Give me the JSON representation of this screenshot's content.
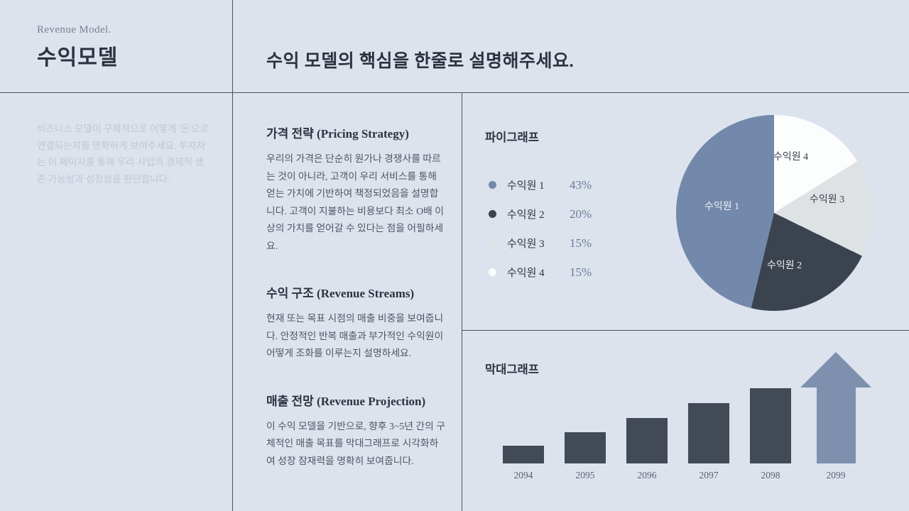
{
  "theme": {
    "background": "#dce3ed",
    "divider": "#49525f",
    "heading_text": "#2c3440",
    "body_text": "#4e5764",
    "muted_text": "#bec7d3",
    "accent_blue": "#7389ab",
    "dark_slate": "#3b434e"
  },
  "sidebar": {
    "eyebrow": "Revenue Model.",
    "title": "수익모델",
    "description": "비즈니스 모델이 구체적으로 어떻게 '돈'으로 연결되는지를 명확하게 보여주세요. 투자자는 이 페이지를 통해 우리 사업의 경제적 생존 가능성과 성장성을 판단합니다."
  },
  "header": {
    "title": "수익 모델의 핵심을 한줄로 설명해주세요."
  },
  "sections": [
    {
      "heading": "가격 전략 (Pricing Strategy)",
      "body": "우리의 가격은 단순히 원가나 경쟁사를 따르는 것이 아니라, 고객이 우리 서비스를 통해 얻는 가치에 기반하여 책정되었음을 설명합니다. 고객이 지불하는 비용보다 최소 O배 이상의 가치를 얻어갈 수 있다는 점을 어필하세요."
    },
    {
      "heading": "수익 구조 (Revenue Streams)",
      "body": "현재 또는 목표 시점의 매출 비중을 보여줍니다. 안정적인 반복 매출과 부가적인 수익원이 어떻게 조화를 이루는지 설명하세요."
    },
    {
      "heading": "매출 전망 (Revenue Projection)",
      "body": "이 수익 모델을 기반으로, 향후 3~5년 간의 구체적인 매출 목표를 막대그래프로 시각화하여 성장 잠재력을 명확히 보여줍니다."
    }
  ],
  "chart_data": [
    {
      "type": "pie",
      "title": "파이그래프",
      "labels": [
        "수익원 1",
        "수익원 2",
        "수익원 3",
        "수익원 4"
      ],
      "values": [
        43,
        20,
        15,
        15
      ],
      "unit": "%",
      "colors": [
        "#7389ab",
        "#3b434e",
        "#dfe2e5",
        "#fcfdfd"
      ],
      "draw_order": [
        3,
        2,
        1,
        0
      ],
      "legend_position": "left",
      "layout_note": "slices drawn clockwise from 12 o'clock starting with 수익원 4; labels 수익원 1/2 rendered in white inside dark slices, 3/4 in dark text"
    },
    {
      "type": "bar",
      "title": "막대그래프",
      "categories": [
        "2094",
        "2095",
        "2096",
        "2097",
        "2098",
        "2099"
      ],
      "values_relative": [
        25,
        44,
        64,
        85,
        106,
        157
      ],
      "arrow_index": 5,
      "bar_color": "#424a55",
      "arrow_color": "#7d90ae",
      "axis_note": "no y-axis or gridlines shown; heights are relative estimates, 2099 shown as upward growth arrow"
    }
  ]
}
